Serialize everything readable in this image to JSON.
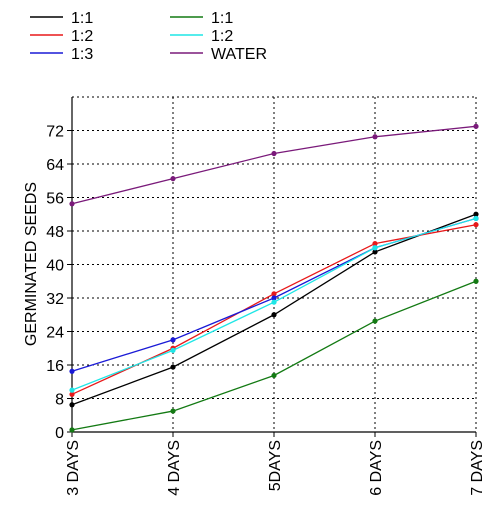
{
  "chart_data": {
    "type": "line",
    "title": "",
    "xlabel": "",
    "ylabel": "GERMINATED SEEDS",
    "categories": [
      "3 DAYS",
      "4 DAYS",
      "5DAYS",
      "6 DAYS",
      "7 DAYS"
    ],
    "yticks": [
      0,
      8,
      16,
      24,
      32,
      40,
      48,
      56,
      64,
      72
    ],
    "ylim": [
      0,
      80
    ],
    "grid": "dotted",
    "legend_position": "top-left",
    "series": [
      {
        "name": "1:1",
        "color": "#000000",
        "values": [
          6.5,
          15.5,
          28,
          43,
          52
        ]
      },
      {
        "name": "1:2",
        "color": "#e8191a",
        "values": [
          9,
          20,
          33,
          45,
          49.5
        ]
      },
      {
        "name": "1:3",
        "color": "#1a1ad6",
        "values": [
          14.5,
          22,
          32,
          44,
          51
        ]
      },
      {
        "name": "1:1",
        "color": "#137a13",
        "values": [
          0.5,
          5,
          13.5,
          26.5,
          36
        ]
      },
      {
        "name": "1:2",
        "color": "#1ee6e6",
        "values": [
          10,
          19.5,
          31,
          44,
          51
        ]
      },
      {
        "name": "WATER",
        "color": "#7a1a7a",
        "values": [
          54.5,
          60.5,
          66.5,
          70.5,
          73
        ]
      }
    ]
  }
}
